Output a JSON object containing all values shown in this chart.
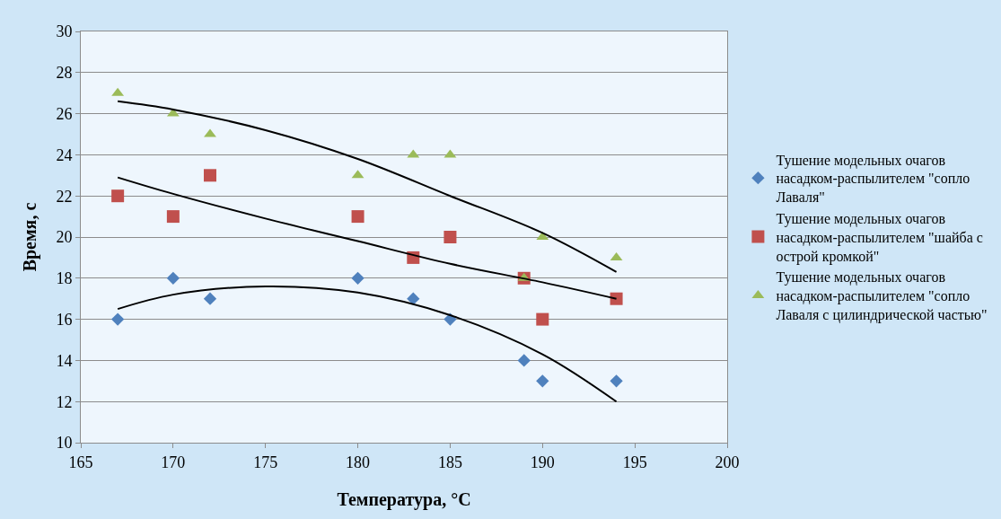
{
  "chart_data": {
    "type": "scatter",
    "xlabel": "Температура, °С",
    "ylabel": "Время, с",
    "xlim": [
      165,
      200
    ],
    "xticks": [
      165,
      170,
      175,
      180,
      185,
      190,
      195,
      200
    ],
    "ylim": [
      10,
      30
    ],
    "yticks": [
      10,
      12,
      14,
      16,
      18,
      20,
      22,
      24,
      26,
      28,
      30
    ],
    "grid": "y",
    "legend": "right",
    "series": [
      {
        "name": "Тушение модельных очагов насадком-распылителем \"сопло Лаваля\"",
        "color": "#4f81bd",
        "marker": "diamond",
        "x": [
          167,
          170,
          172,
          180,
          183,
          185,
          189,
          190,
          194
        ],
        "values": [
          16,
          18,
          17,
          18,
          17,
          16,
          14,
          13,
          13
        ]
      },
      {
        "name": "Тушение модельных очагов насадком-распылителем \"шайба с острой кромкой\"",
        "color": "#c0504d",
        "marker": "square",
        "x": [
          167,
          170,
          172,
          180,
          183,
          185,
          189,
          190,
          194
        ],
        "values": [
          22,
          21,
          23,
          21,
          19,
          20,
          18,
          16,
          17
        ]
      },
      {
        "name": "Тушение модельных очагов насадком-распылителем \"сопло Лаваля с цилиндрической частью\"",
        "color": "#9bbb59",
        "marker": "triangle",
        "x": [
          167,
          170,
          172,
          180,
          183,
          185,
          189,
          190,
          194
        ],
        "values": [
          27,
          26,
          25,
          23,
          24,
          24,
          18,
          20,
          19
        ]
      },
      {
        "type": "line",
        "color": "#000000",
        "marker": "none",
        "x": [
          167,
          170,
          175,
          180,
          185,
          190,
          194
        ],
        "values": [
          16.5,
          17.2,
          17.6,
          17.3,
          16.2,
          14.3,
          12
        ]
      },
      {
        "type": "line",
        "color": "#000000",
        "marker": "none",
        "x": [
          167,
          170,
          175,
          180,
          185,
          190,
          194
        ],
        "values": [
          22.9,
          22.1,
          20.9,
          19.8,
          18.7,
          17.8,
          17
        ]
      },
      {
        "type": "line",
        "color": "#000000",
        "marker": "none",
        "x": [
          167,
          170,
          175,
          180,
          185,
          190,
          194
        ],
        "values": [
          26.6,
          26.2,
          25.2,
          23.8,
          22,
          20.2,
          18.3
        ]
      }
    ]
  }
}
